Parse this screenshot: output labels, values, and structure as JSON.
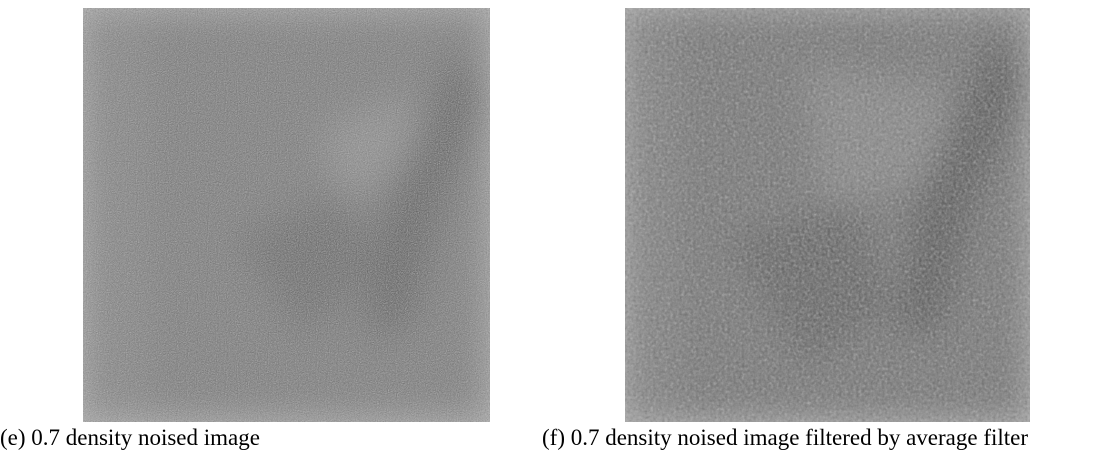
{
  "figure": {
    "panels": [
      {
        "caption": "(e) 0.7 density noised image"
      },
      {
        "caption": "(f) 0.7 density noised image filtered by average filter"
      }
    ]
  }
}
